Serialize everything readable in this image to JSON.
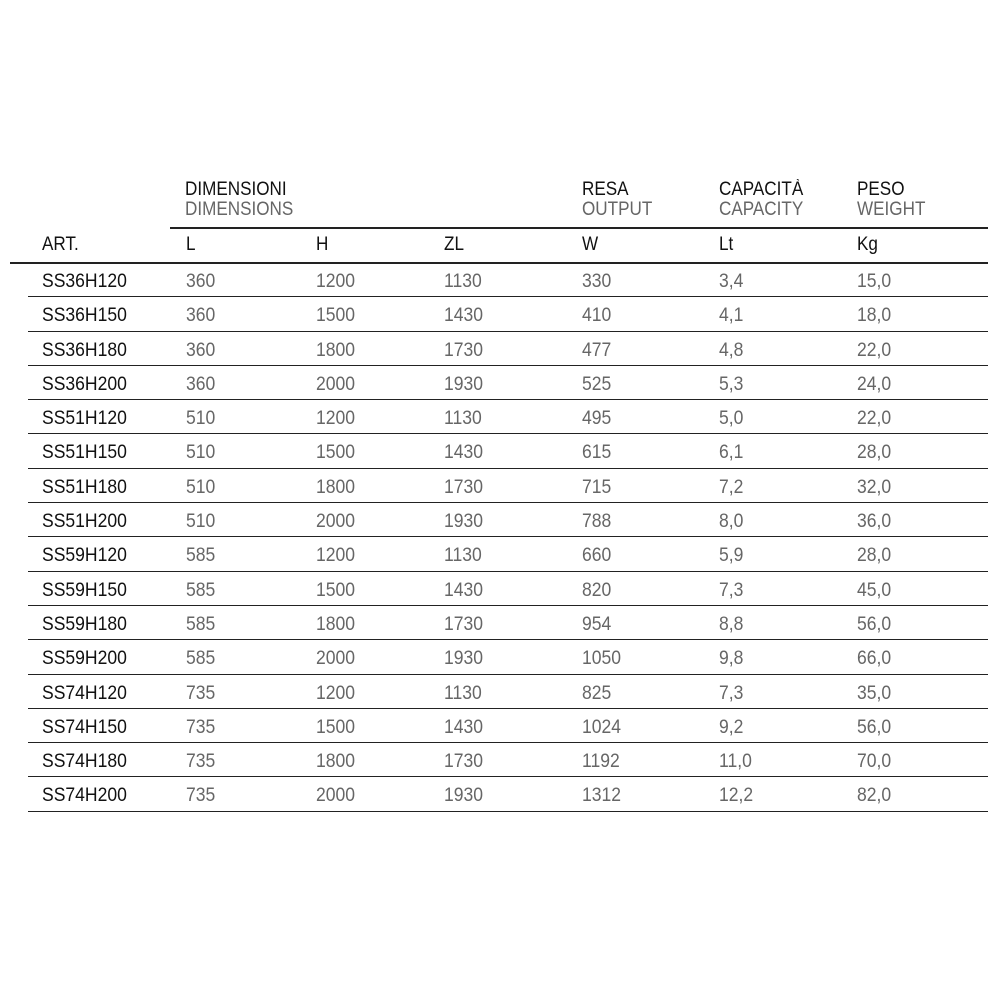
{
  "headers": {
    "dimensions": {
      "title": "DIMENSIONI",
      "subtitle": "DIMENSIONS"
    },
    "output": {
      "title": "RESA",
      "subtitle": "OUTPUT"
    },
    "capacity": {
      "title": "CAPACITÀ",
      "subtitle": "CAPACITY"
    },
    "weight": {
      "title": "PESO",
      "subtitle": "WEIGHT"
    }
  },
  "units": [
    "ART.",
    "L",
    "H",
    "ZL",
    "W",
    "Lt",
    "Kg"
  ],
  "rows": [
    [
      "SS36H120",
      "360",
      "1200",
      "1130",
      "330",
      "3,4",
      "15,0"
    ],
    [
      "SS36H150",
      "360",
      "1500",
      "1430",
      "410",
      "4,1",
      "18,0"
    ],
    [
      "SS36H180",
      "360",
      "1800",
      "1730",
      "477",
      "4,8",
      "22,0"
    ],
    [
      "SS36H200",
      "360",
      "2000",
      "1930",
      "525",
      "5,3",
      "24,0"
    ],
    [
      "SS51H120",
      "510",
      "1200",
      "1130",
      "495",
      "5,0",
      "22,0"
    ],
    [
      "SS51H150",
      "510",
      "1500",
      "1430",
      "615",
      "6,1",
      "28,0"
    ],
    [
      "SS51H180",
      "510",
      "1800",
      "1730",
      "715",
      "7,2",
      "32,0"
    ],
    [
      "SS51H200",
      "510",
      "2000",
      "1930",
      "788",
      "8,0",
      "36,0"
    ],
    [
      "SS59H120",
      "585",
      "1200",
      "1130",
      "660",
      "5,9",
      "28,0"
    ],
    [
      "SS59H150",
      "585",
      "1500",
      "1430",
      "820",
      "7,3",
      "45,0"
    ],
    [
      "SS59H180",
      "585",
      "1800",
      "1730",
      "954",
      "8,8",
      "56,0"
    ],
    [
      "SS59H200",
      "585",
      "2000",
      "1930",
      "1050",
      "9,8",
      "66,0"
    ],
    [
      "SS74H120",
      "735",
      "1200",
      "1130",
      "825",
      "7,3",
      "35,0"
    ],
    [
      "SS74H150",
      "735",
      "1500",
      "1430",
      "1024",
      "9,2",
      "56,0"
    ],
    [
      "SS74H180",
      "735",
      "1800",
      "1730",
      "1192",
      "11,0",
      "70,0"
    ],
    [
      "SS74H200",
      "735",
      "2000",
      "1930",
      "1312",
      "12,2",
      "82,0"
    ]
  ]
}
